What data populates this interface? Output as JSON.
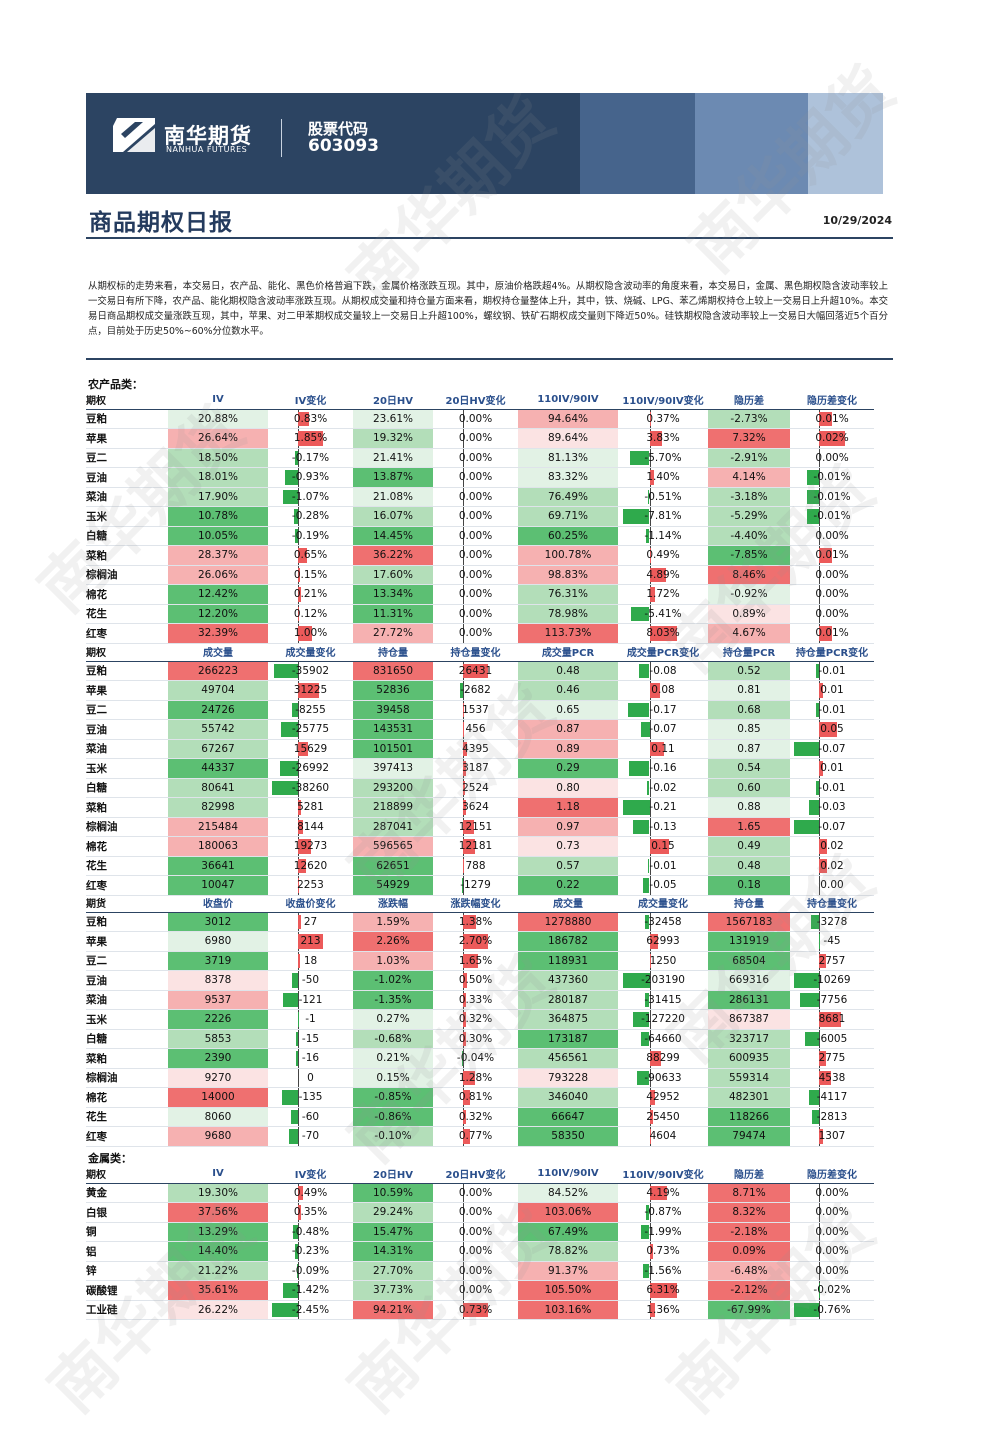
{
  "header": {
    "brand_cn": "南华期货",
    "brand_en": "NANHUA FUTURES",
    "code_label": "股票代码",
    "code_value": "603093"
  },
  "report": {
    "title": "商品期权日报",
    "date": "10/29/2024"
  },
  "summary": "从期权标的走势来看，本交易日，农产品、能化、黑色价格普遍下跌，金属价格涨跌互现。其中，原油价格跌超4%。从期权隐含波动率的角度来看，本交易日，金属、黑色期权隐含波动率较上一交易日有所下降，农产品、能化期权隐含波动率涨跌互现。从期权成交量和持仓量方面来看，期权持仓量整体上升，其中，铁、烧碱、LPG、苯乙烯期权持仓上较上一交易日上升超10%。本交易日商品期权成交量涨跌互现，其中，苹果、对二甲苯期权成交量较上一交易日上升超100%，螺纹钢、铁矿石期权成交量则下降近50%。硅铁期权隐含波动率较上一交易日大幅回落近5个百分点，目前处于历史50%~60%分位数水平。",
  "sections": {
    "agri": "农产品类：",
    "metal": "金属类："
  },
  "tables": {
    "vol_headers": [
      "期权",
      "IV",
      "IV变化",
      "20日HV",
      "20日HV变化",
      "110IV/90IV",
      "110IV/90IV变化",
      "隐历差",
      "隐历差变化"
    ],
    "agri_vol": [
      [
        "豆粕",
        "20.88%",
        "0.83%",
        "23.61%",
        "0.00%",
        "94.64%",
        "0.37%",
        "-2.73%",
        "0.01%"
      ],
      [
        "苹果",
        "26.64%",
        "1.85%",
        "19.32%",
        "0.00%",
        "89.64%",
        "3.83%",
        "7.32%",
        "0.02%"
      ],
      [
        "豆二",
        "18.50%",
        "-0.17%",
        "21.41%",
        "0.00%",
        "81.13%",
        "-5.70%",
        "-2.91%",
        "0.00%"
      ],
      [
        "豆油",
        "18.01%",
        "-0.93%",
        "13.87%",
        "0.00%",
        "83.32%",
        "1.40%",
        "4.14%",
        "-0.01%"
      ],
      [
        "菜油",
        "17.90%",
        "-1.07%",
        "21.08%",
        "0.00%",
        "76.49%",
        "-0.51%",
        "-3.18%",
        "-0.01%"
      ],
      [
        "玉米",
        "10.78%",
        "-0.28%",
        "16.07%",
        "0.00%",
        "69.71%",
        "-7.81%",
        "-5.29%",
        "-0.01%"
      ],
      [
        "白糖",
        "10.05%",
        "-0.19%",
        "14.45%",
        "0.00%",
        "60.25%",
        "-1.14%",
        "-4.40%",
        "0.00%"
      ],
      [
        "菜粕",
        "28.37%",
        "0.65%",
        "36.22%",
        "0.00%",
        "100.78%",
        "0.49%",
        "-7.85%",
        "0.01%"
      ],
      [
        "棕榈油",
        "26.06%",
        "0.15%",
        "17.60%",
        "0.00%",
        "98.83%",
        "4.89%",
        "8.46%",
        "0.00%"
      ],
      [
        "棉花",
        "12.42%",
        "0.21%",
        "13.34%",
        "0.00%",
        "76.31%",
        "1.72%",
        "-0.92%",
        "0.00%"
      ],
      [
        "花生",
        "12.20%",
        "0.12%",
        "11.31%",
        "0.00%",
        "78.98%",
        "-5.41%",
        "0.89%",
        "0.00%"
      ],
      [
        "红枣",
        "32.39%",
        "1.00%",
        "27.72%",
        "0.00%",
        "113.73%",
        "8.03%",
        "4.67%",
        "0.01%"
      ]
    ],
    "opt_headers": [
      "期权",
      "成交量",
      "成交量变化",
      "持仓量",
      "持仓量变化",
      "成交量PCR",
      "成交量PCR变化",
      "持仓量PCR",
      "持仓量PCR变化"
    ],
    "agri_opt": [
      [
        "豆粕",
        "266223",
        "-35902",
        "831650",
        "26431",
        "0.48",
        "-0.08",
        "0.52",
        "-0.01"
      ],
      [
        "苹果",
        "49704",
        "31225",
        "52836",
        "-2682",
        "0.46",
        "0.08",
        "0.81",
        "0.01"
      ],
      [
        "豆二",
        "24726",
        "-8255",
        "39458",
        "1537",
        "0.65",
        "-0.17",
        "0.68",
        "-0.01"
      ],
      [
        "豆油",
        "55742",
        "-25775",
        "143531",
        "456",
        "0.87",
        "-0.07",
        "0.85",
        "0.05"
      ],
      [
        "菜油",
        "67267",
        "15629",
        "101501",
        "4395",
        "0.89",
        "0.11",
        "0.87",
        "-0.07"
      ],
      [
        "玉米",
        "44337",
        "-26992",
        "397413",
        "3187",
        "0.29",
        "-0.16",
        "0.54",
        "0.01"
      ],
      [
        "白糖",
        "80641",
        "-38260",
        "293200",
        "2524",
        "0.80",
        "-0.02",
        "0.60",
        "-0.01"
      ],
      [
        "菜粕",
        "82998",
        "5281",
        "218899",
        "3624",
        "1.18",
        "-0.21",
        "0.88",
        "-0.03"
      ],
      [
        "棕榈油",
        "215484",
        "8144",
        "287041",
        "12151",
        "0.97",
        "-0.13",
        "1.65",
        "-0.07"
      ],
      [
        "棉花",
        "180063",
        "19273",
        "596565",
        "12181",
        "0.73",
        "0.15",
        "0.49",
        "0.02"
      ],
      [
        "花生",
        "36641",
        "12620",
        "62651",
        "788",
        "0.57",
        "-0.01",
        "0.48",
        "0.02"
      ],
      [
        "红枣",
        "10047",
        "2253",
        "54929",
        "-1279",
        "0.22",
        "-0.05",
        "0.18",
        "0.00"
      ]
    ],
    "fut_headers": [
      "期货",
      "收盘价",
      "收盘价变化",
      "涨跌幅",
      "涨跌幅变化",
      "成交量",
      "成交量变化",
      "持仓量",
      "持仓量变化"
    ],
    "agri_fut": [
      [
        "豆粕",
        "3012",
        "27",
        "1.59%",
        "1.38%",
        "1278880",
        "-32458",
        "1567183",
        "-3278"
      ],
      [
        "苹果",
        "6980",
        "213",
        "2.26%",
        "2.70%",
        "186782",
        "62993",
        "131919",
        "-45"
      ],
      [
        "豆二",
        "3719",
        "18",
        "1.03%",
        "1.65%",
        "118931",
        "1250",
        "68504",
        "2757"
      ],
      [
        "豆油",
        "8378",
        "-50",
        "-1.02%",
        "0.50%",
        "437360",
        "-203190",
        "669316",
        "-10269"
      ],
      [
        "菜油",
        "9537",
        "-121",
        "-1.35%",
        "0.33%",
        "280187",
        "-31415",
        "286131",
        "-7756"
      ],
      [
        "玉米",
        "2226",
        "-1",
        "0.27%",
        "0.32%",
        "364875",
        "-127220",
        "867387",
        "8681"
      ],
      [
        "白糖",
        "5853",
        "-15",
        "-0.68%",
        "0.30%",
        "173187",
        "-64660",
        "323717",
        "-6005"
      ],
      [
        "菜粕",
        "2390",
        "-16",
        "0.21%",
        "-0.04%",
        "456561",
        "88299",
        "600935",
        "2775"
      ],
      [
        "棕榈油",
        "9270",
        "0",
        "0.15%",
        "1.28%",
        "793228",
        "-90633",
        "559314",
        "4538"
      ],
      [
        "棉花",
        "14000",
        "-135",
        "-0.85%",
        "0.81%",
        "346040",
        "42952",
        "482301",
        "-4117"
      ],
      [
        "花生",
        "8060",
        "-60",
        "-0.86%",
        "0.32%",
        "66647",
        "25450",
        "118266",
        "-2813"
      ],
      [
        "红枣",
        "9680",
        "-70",
        "-0.10%",
        "0.77%",
        "58350",
        "4604",
        "79474",
        "1307"
      ]
    ],
    "metal_vol": [
      [
        "黄金",
        "19.30%",
        "0.49%",
        "10.59%",
        "0.00%",
        "84.52%",
        "4.19%",
        "8.71%",
        "0.00%"
      ],
      [
        "白银",
        "37.56%",
        "0.35%",
        "29.24%",
        "0.00%",
        "103.06%",
        "-0.87%",
        "8.32%",
        "0.00%"
      ],
      [
        "铜",
        "13.29%",
        "-0.48%",
        "15.47%",
        "0.00%",
        "67.49%",
        "-1.99%",
        "-2.18%",
        "0.00%"
      ],
      [
        "铝",
        "14.40%",
        "-0.23%",
        "14.31%",
        "0.00%",
        "78.82%",
        "0.73%",
        "0.09%",
        "0.00%"
      ],
      [
        "锌",
        "21.22%",
        "-0.09%",
        "27.70%",
        "0.00%",
        "91.37%",
        "-1.56%",
        "-6.48%",
        "0.00%"
      ],
      [
        "碳酸锂",
        "35.61%",
        "-1.42%",
        "37.73%",
        "0.00%",
        "105.50%",
        "6.31%",
        "-2.12%",
        "-0.02%"
      ],
      [
        "工业硅",
        "26.22%",
        "-2.45%",
        "94.21%",
        "0.73%",
        "103.16%",
        "1.36%",
        "-67.99%",
        "-0.76%"
      ]
    ]
  },
  "watermark": "南华期货",
  "colors": {
    "navy": "#2c4462",
    "red": "#ec5a5a",
    "green": "#2faa4c",
    "header_text": "#2a4f8c"
  }
}
